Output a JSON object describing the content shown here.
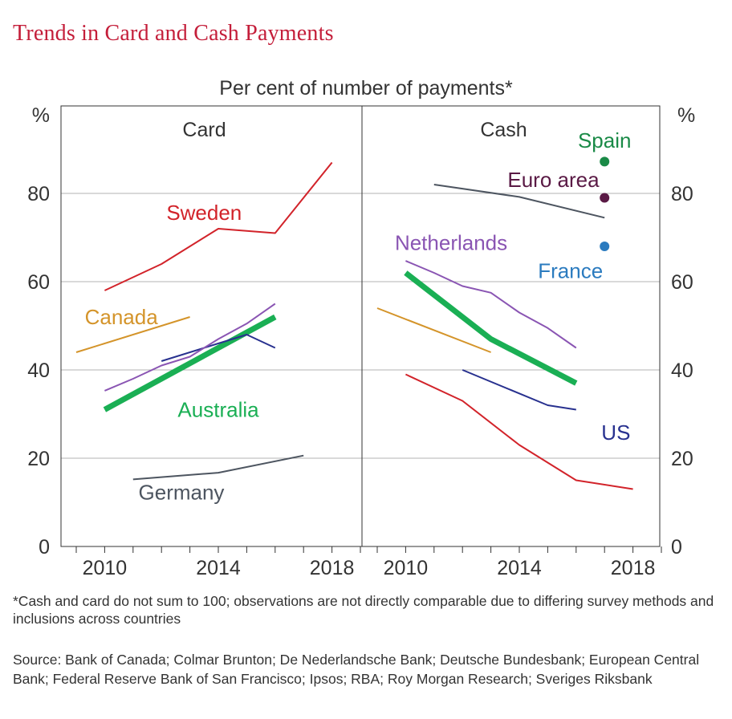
{
  "title": "Trends in Card and Cash Payments",
  "subtitle": "Per cent of number of payments*",
  "footnote": "*Cash and card do not sum to 100; observations are not directly comparable due to differing survey methods and inclusions across countries",
  "sources": "Source: Bank of Canada; Colmar Brunton; De Nederlandsche Bank; Deutsche Bundesbank; European Central Bank; Federal Reserve Bank of San Francisco; Ipsos; RBA; Roy Morgan Research; Sveriges Riksbank",
  "y_unit_left": "%",
  "y_unit_right": "%",
  "colors": {
    "Sweden": "#d2232a",
    "Canada": "#d4942a",
    "Australia": "#1aaf54",
    "Germany": "#4d5560",
    "US": "#28318f",
    "Netherlands": "#8a55b3",
    "Spain": "#1a8a47",
    "Euro area": "#5a1a45",
    "France": "#2b7bbf"
  },
  "chart_data": [
    {
      "type": "line",
      "panel_title": "Card",
      "xlim": [
        2008.5,
        2019.2
      ],
      "ylim": [
        0,
        100
      ],
      "yticks": [
        0,
        20,
        40,
        60,
        80
      ],
      "xticks": [
        2010,
        2014,
        2018
      ],
      "grid": true,
      "series": [
        {
          "name": "Sweden",
          "points": [
            [
              2010,
              58
            ],
            [
              2012,
              64
            ],
            [
              2014,
              72
            ],
            [
              2016,
              71
            ],
            [
              2018,
              87
            ]
          ]
        },
        {
          "name": "Canada",
          "points": [
            [
              2009,
              44
            ],
            [
              2013,
              52
            ]
          ]
        },
        {
          "name": "Australia",
          "points": [
            [
              2010,
              31
            ],
            [
              2016,
              52
            ]
          ]
        },
        {
          "name": "US",
          "points": [
            [
              2012,
              42
            ],
            [
              2015,
              48
            ],
            [
              2016,
              45
            ]
          ]
        },
        {
          "name": "Netherlands",
          "points": [
            [
              2010,
              35.3
            ],
            [
              2011,
              38
            ],
            [
              2012,
              41
            ],
            [
              2013,
              43
            ],
            [
              2014,
              47
            ],
            [
              2015,
              50.5
            ],
            [
              2016,
              55
            ]
          ]
        },
        {
          "name": "Germany",
          "points": [
            [
              2011,
              15.2
            ],
            [
              2014,
              16.7
            ],
            [
              2017,
              20.6
            ]
          ]
        }
      ]
    },
    {
      "type": "line",
      "panel_title": "Cash",
      "xlim": [
        2008.5,
        2019.2
      ],
      "ylim": [
        0,
        100
      ],
      "yticks": [
        0,
        20,
        40,
        60,
        80
      ],
      "xticks": [
        2010,
        2014,
        2018
      ],
      "grid": true,
      "series": [
        {
          "name": "Netherlands",
          "points": [
            [
              2010,
              64.7
            ],
            [
              2011,
              62
            ],
            [
              2012,
              59
            ],
            [
              2013,
              57.5
            ],
            [
              2014,
              53
            ],
            [
              2015,
              49.5
            ],
            [
              2016,
              45
            ]
          ]
        },
        {
          "name": "Australia",
          "points": [
            [
              2010,
              62
            ],
            [
              2013,
              47
            ],
            [
              2016,
              37
            ]
          ]
        },
        {
          "name": "Canada",
          "points": [
            [
              2009,
              54
            ],
            [
              2013,
              44
            ]
          ]
        },
        {
          "name": "Sweden",
          "points": [
            [
              2010,
              39
            ],
            [
              2012,
              33
            ],
            [
              2014,
              23
            ],
            [
              2016,
              15
            ],
            [
              2018,
              13
            ]
          ]
        },
        {
          "name": "US",
          "points": [
            [
              2012,
              40
            ],
            [
              2015,
              32
            ],
            [
              2016,
              31
            ]
          ]
        },
        {
          "name": "Germany",
          "points": [
            [
              2011,
              82
            ],
            [
              2014,
              79.2
            ],
            [
              2017,
              74.5
            ]
          ]
        },
        {
          "name": "Spain",
          "points": [
            [
              2017,
              87.2
            ]
          ],
          "marker": "dot"
        },
        {
          "name": "Euro area",
          "points": [
            [
              2017,
              79
            ]
          ],
          "marker": "dot"
        },
        {
          "name": "France",
          "points": [
            [
              2017,
              68
            ]
          ],
          "marker": "dot"
        }
      ]
    }
  ],
  "labels": {
    "card": [
      {
        "text": "Sweden",
        "series": "Sweden"
      },
      {
        "text": "Canada",
        "series": "Canada"
      },
      {
        "text": "Australia",
        "series": "Australia"
      },
      {
        "text": "Germany",
        "series": "Germany"
      }
    ],
    "cash": [
      {
        "text": "Spain",
        "series": "Spain"
      },
      {
        "text": "Euro area",
        "series": "Euro area"
      },
      {
        "text": "Netherlands",
        "series": "Netherlands"
      },
      {
        "text": "France",
        "series": "France"
      },
      {
        "text": "US",
        "series": "US"
      }
    ]
  }
}
